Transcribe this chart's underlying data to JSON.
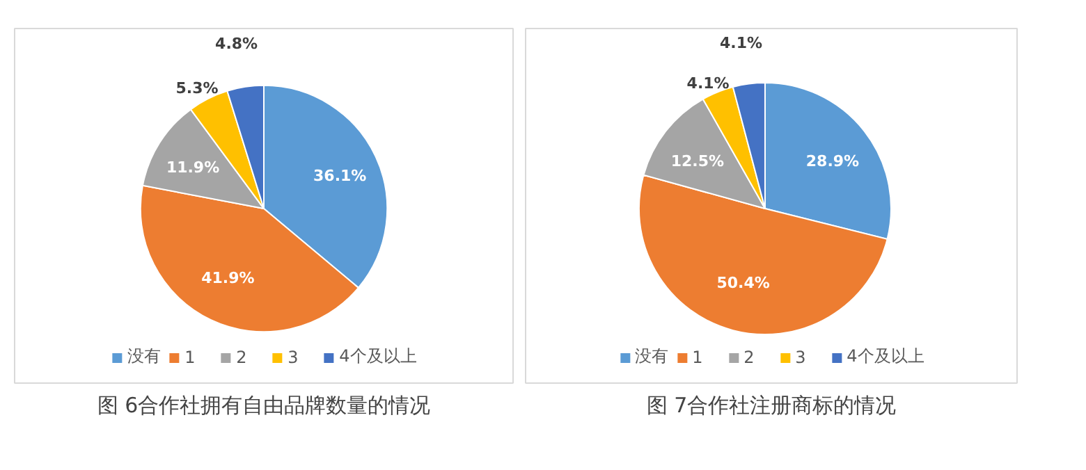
{
  "chart_data": [
    {
      "type": "pie",
      "title": "图 6合作社拥有自由品牌数量的情况",
      "categories": [
        "没有",
        "1",
        "2",
        "3",
        "4个及以上"
      ],
      "values": [
        36.1,
        41.9,
        11.9,
        5.3,
        4.8
      ],
      "value_labels": [
        "36.1%",
        "41.9%",
        "11.9%",
        "5.3%",
        "4.8%"
      ],
      "colors": [
        "#5b9bd5",
        "#ed7d31",
        "#a5a5a5",
        "#ffc000",
        "#4472c4"
      ],
      "legend": "bottom"
    },
    {
      "type": "pie",
      "title": "图 7合作社注册商标的情况",
      "categories": [
        "没有",
        "1",
        "2",
        "3",
        "4个及以上"
      ],
      "values": [
        28.9,
        50.4,
        12.5,
        4.1,
        4.1
      ],
      "value_labels": [
        "28.9%",
        "50.4%",
        "12.5%",
        "4.1%",
        "4.1%"
      ],
      "colors": [
        "#5b9bd5",
        "#ed7d31",
        "#a5a5a5",
        "#ffc000",
        "#4472c4"
      ],
      "legend": "bottom"
    }
  ]
}
